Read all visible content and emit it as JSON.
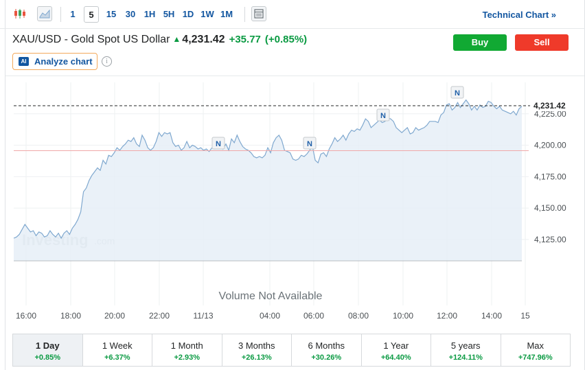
{
  "toolbar": {
    "candles_icon": "candlestick-icon",
    "area_icon": "area-chart-icon",
    "timeframes": [
      "1",
      "5",
      "15",
      "30",
      "1H",
      "5H",
      "1D",
      "1W",
      "1M"
    ],
    "active_timeframe": "5",
    "table_icon": "table-icon",
    "technical_link": "Technical Chart »"
  },
  "header": {
    "title": "XAU/USD - Gold Spot US Dollar",
    "price": "4,231.42",
    "change": "+35.77",
    "change_pct": "(+0.85%)",
    "buy_label": "Buy",
    "sell_label": "Sell",
    "analyze_badge": "AI",
    "analyze_label": "Analyze chart",
    "info_glyph": "i"
  },
  "colors": {
    "accent": "#1256a0",
    "up": "#0a9a42",
    "buy": "#11a933",
    "sell": "#ef3a2a",
    "line": "#7fa8cf",
    "area": "#e6eef7"
  },
  "chart_data": {
    "type": "area",
    "x_ticks": [
      "16:00",
      "18:00",
      "20:00",
      "22:00",
      "11/13",
      "04:00",
      "06:00",
      "08:00",
      "10:00",
      "12:00",
      "14:00",
      "15"
    ],
    "y_ticks": [
      "4,225.00",
      "4,200.00",
      "4,175.00",
      "4,150.00",
      "4,125.00"
    ],
    "ylim": [
      4108,
      4250
    ],
    "last_price_label": "4,231.42",
    "last_price": 4231.42,
    "previous_close": 4195.65,
    "series": [
      {
        "values": [
          4126,
          4127,
          4129,
          4133,
          4137,
          4134,
          4131,
          4132,
          4128,
          4131,
          4130,
          4127,
          4128,
          4132,
          4129,
          4127,
          4130,
          4126,
          4130,
          4132,
          4129,
          4134,
          4137,
          4141,
          4147,
          4163,
          4166,
          4172,
          4176,
          4179,
          4182,
          4180,
          4188,
          4185,
          4192,
          4191,
          4194,
          4198,
          4196,
          4199,
          4201,
          4204,
          4203,
          4206,
          4201,
          4199,
          4208,
          4204,
          4198,
          4196,
          4198,
          4203,
          4210,
          4207,
          4210,
          4209,
          4210,
          4202,
          4199,
          4200,
          4196,
          4198,
          4203,
          4198,
          4200,
          4199,
          4197,
          4198,
          4196,
          4197,
          4195,
          4198,
          4197,
          4203,
          4205,
          4197,
          4201,
          4196,
          4205,
          4202,
          4208,
          4203,
          4199,
          4197,
          4196,
          4194,
          4191,
          4190,
          4191,
          4190,
          4192,
          4198,
          4194,
          4202,
          4206,
          4208,
          4204,
          4196,
          4195,
          4194,
          4189,
          4188,
          4189,
          4192,
          4191,
          4193,
          4196,
          4199,
          4188,
          4186,
          4193,
          4194,
          4191,
          4197,
          4201,
          4206,
          4203,
          4205,
          4208,
          4204,
          4209,
          4212,
          4211,
          4213,
          4212,
          4216,
          4221,
          4219,
          4214,
          4216,
          4218,
          4220,
          4218,
          4219,
          4222,
          4221,
          4219,
          4214,
          4212,
          4210,
          4212,
          4214,
          4209,
          4210,
          4214,
          4212,
          4213,
          4214,
          4216,
          4219,
          4219,
          4219,
          4218,
          4224,
          4226,
          4232,
          4233,
          4228,
          4230,
          4234,
          4230,
          4233,
          4236,
          4233,
          4228,
          4231,
          4228,
          4232,
          4230,
          4231,
          4235,
          4234,
          4231,
          4229,
          4231,
          4228,
          4227,
          4226,
          4225,
          4227,
          4224,
          4229,
          4231
        ]
      }
    ],
    "news_markers": [
      "N",
      "N",
      "N",
      "N"
    ],
    "watermark": "Investing",
    "watermark_suffix": ".com",
    "volume_note": "Volume Not Available"
  },
  "periods": [
    {
      "label": "1 Day",
      "change": "+0.85%"
    },
    {
      "label": "1 Week",
      "change": "+6.37%"
    },
    {
      "label": "1 Month",
      "change": "+2.93%"
    },
    {
      "label": "3 Months",
      "change": "+26.13%"
    },
    {
      "label": "6 Months",
      "change": "+30.26%"
    },
    {
      "label": "1 Year",
      "change": "+64.40%"
    },
    {
      "label": "5 years",
      "change": "+124.11%"
    },
    {
      "label": "Max",
      "change": "+747.96%"
    }
  ]
}
